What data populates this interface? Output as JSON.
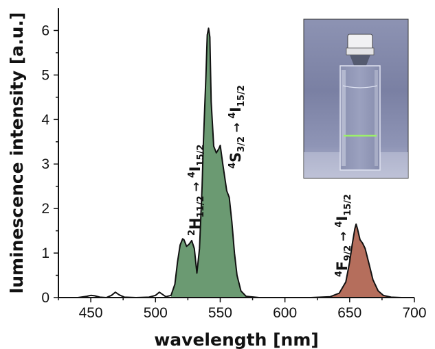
{
  "chart_data": {
    "type": "area",
    "title": "",
    "xlabel": "wavelength [nm]",
    "ylabel": "luminescence intensity [a.u.]",
    "xlim": [
      425,
      700
    ],
    "ylim": [
      0,
      6.5
    ],
    "x_ticks": [
      "450",
      "500",
      "550",
      "600",
      "650",
      "700"
    ],
    "y_ticks": [
      "0",
      "1",
      "2",
      "3",
      "4",
      "5",
      "6"
    ],
    "grid": false,
    "colors": {
      "green_band": "#6b9a72",
      "red_band": "#b56e5c",
      "line": "#111111"
    },
    "series": [
      {
        "x": [
          425,
          440,
          447,
          450,
          453,
          457,
          462,
          466,
          469,
          472,
          476,
          485,
          495,
          500,
          503,
          505,
          508,
          512,
          515,
          517,
          519,
          521,
          522,
          524,
          526,
          528,
          530,
          532,
          534,
          536,
          537,
          539,
          540,
          541,
          542,
          543,
          545,
          547,
          549,
          550,
          552,
          554,
          555,
          557,
          559,
          561,
          563,
          566,
          570,
          580,
          600,
          620,
          635,
          642,
          647,
          650,
          652,
          654,
          655,
          656,
          658,
          660,
          662,
          665,
          668,
          672,
          676,
          682,
          690,
          700
        ],
        "y": [
          0.0,
          0.0,
          0.03,
          0.05,
          0.04,
          0.01,
          0.0,
          0.05,
          0.12,
          0.06,
          0.01,
          0.0,
          0.01,
          0.05,
          0.12,
          0.08,
          0.02,
          0.05,
          0.3,
          0.8,
          1.18,
          1.32,
          1.3,
          1.15,
          1.2,
          1.28,
          1.1,
          0.55,
          1.1,
          2.5,
          3.5,
          5.0,
          5.9,
          6.05,
          5.85,
          4.4,
          3.4,
          3.25,
          3.35,
          3.42,
          3.0,
          2.6,
          2.4,
          2.25,
          1.7,
          1.0,
          0.5,
          0.15,
          0.03,
          0.0,
          0.0,
          0.0,
          0.02,
          0.1,
          0.35,
          0.8,
          1.2,
          1.55,
          1.65,
          1.55,
          1.3,
          1.22,
          1.1,
          0.75,
          0.4,
          0.15,
          0.05,
          0.01,
          0.0,
          0.0
        ]
      }
    ],
    "transitions": [
      {
        "upper_sup": "2",
        "upper_sym": "H",
        "upper_sub": "11/2",
        "lower_sup": "4",
        "lower_sym": "I",
        "lower_sub": "15/2"
      },
      {
        "upper_sup": "4",
        "upper_sym": "S",
        "upper_sub": "3/2",
        "lower_sup": "4",
        "lower_sym": "I",
        "lower_sub": "15/2"
      },
      {
        "upper_sup": "4",
        "upper_sym": "F",
        "upper_sub": "9/2",
        "lower_sup": "4",
        "lower_sym": "I",
        "lower_sub": "15/2"
      }
    ],
    "inset": "photo of a glass cuvette with a cap showing a thin green luminescent line"
  }
}
